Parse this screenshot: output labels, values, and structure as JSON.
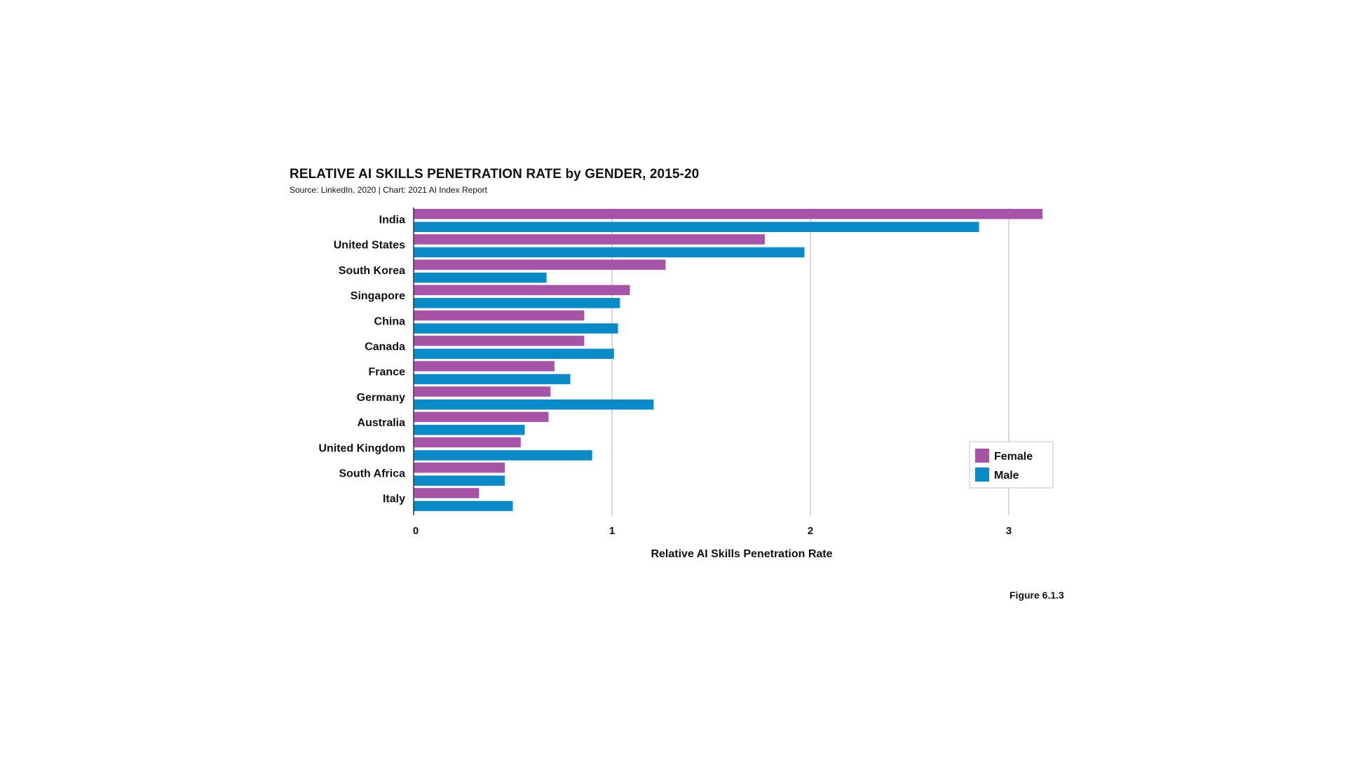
{
  "title": "RELATIVE AI SKILLS PENETRATION RATE by GENDER, 2015-20",
  "source": "Source: LinkedIn, 2020 | Chart: 2021 AI Index Report",
  "figure": "Figure 6.1.3",
  "chart_data": {
    "type": "bar",
    "orientation": "horizontal",
    "categories": [
      "India",
      "United States",
      "South Korea",
      "Singapore",
      "China",
      "Canada",
      "France",
      "Germany",
      "Australia",
      "United Kingdom",
      "South Africa",
      "Italy"
    ],
    "series": [
      {
        "name": "Female",
        "color": "#a653a8",
        "values": [
          3.17,
          1.77,
          1.27,
          1.09,
          0.86,
          0.86,
          0.71,
          0.69,
          0.68,
          0.54,
          0.46,
          0.33
        ]
      },
      {
        "name": "Male",
        "color": "#0a8bc9",
        "values": [
          2.85,
          1.97,
          0.67,
          1.04,
          1.03,
          1.01,
          0.79,
          1.21,
          0.56,
          0.9,
          0.46,
          0.5
        ]
      }
    ],
    "xlabel": "Relative AI Skills Penetration Rate",
    "xlim": [
      0,
      3.3
    ],
    "xticks": [
      0,
      1,
      2,
      3
    ],
    "grid": "vertical",
    "legend_position": "bottom-right"
  }
}
